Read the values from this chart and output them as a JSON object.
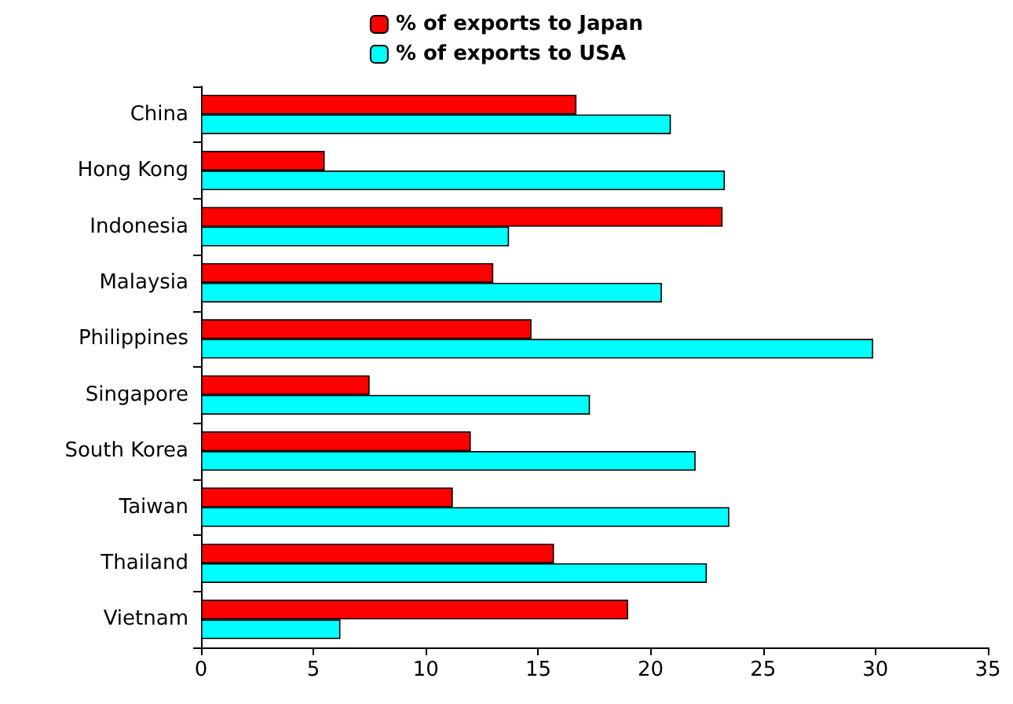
{
  "chart_data": {
    "type": "bar",
    "orientation": "horizontal",
    "categories": [
      "China",
      "Hong Kong",
      "Indonesia",
      "Malaysia",
      "Philippines",
      "Singapore",
      "South Korea",
      "Taiwan",
      "Thailand",
      "Vietnam"
    ],
    "series": [
      {
        "name": "% of exports to Japan",
        "color": "#ff0000",
        "values": [
          16.7,
          5.5,
          23.2,
          13.0,
          14.7,
          7.5,
          12.0,
          11.2,
          15.7,
          19.0
        ]
      },
      {
        "name": "% of exports to USA",
        "color": "#00ffff",
        "values": [
          20.9,
          23.3,
          13.7,
          20.5,
          29.9,
          17.3,
          22.0,
          23.5,
          22.5,
          6.2
        ]
      }
    ],
    "xlim": [
      0,
      35
    ],
    "xticks": [
      0,
      5,
      10,
      15,
      20,
      25,
      30,
      35
    ],
    "grid": false,
    "legend": "top"
  }
}
